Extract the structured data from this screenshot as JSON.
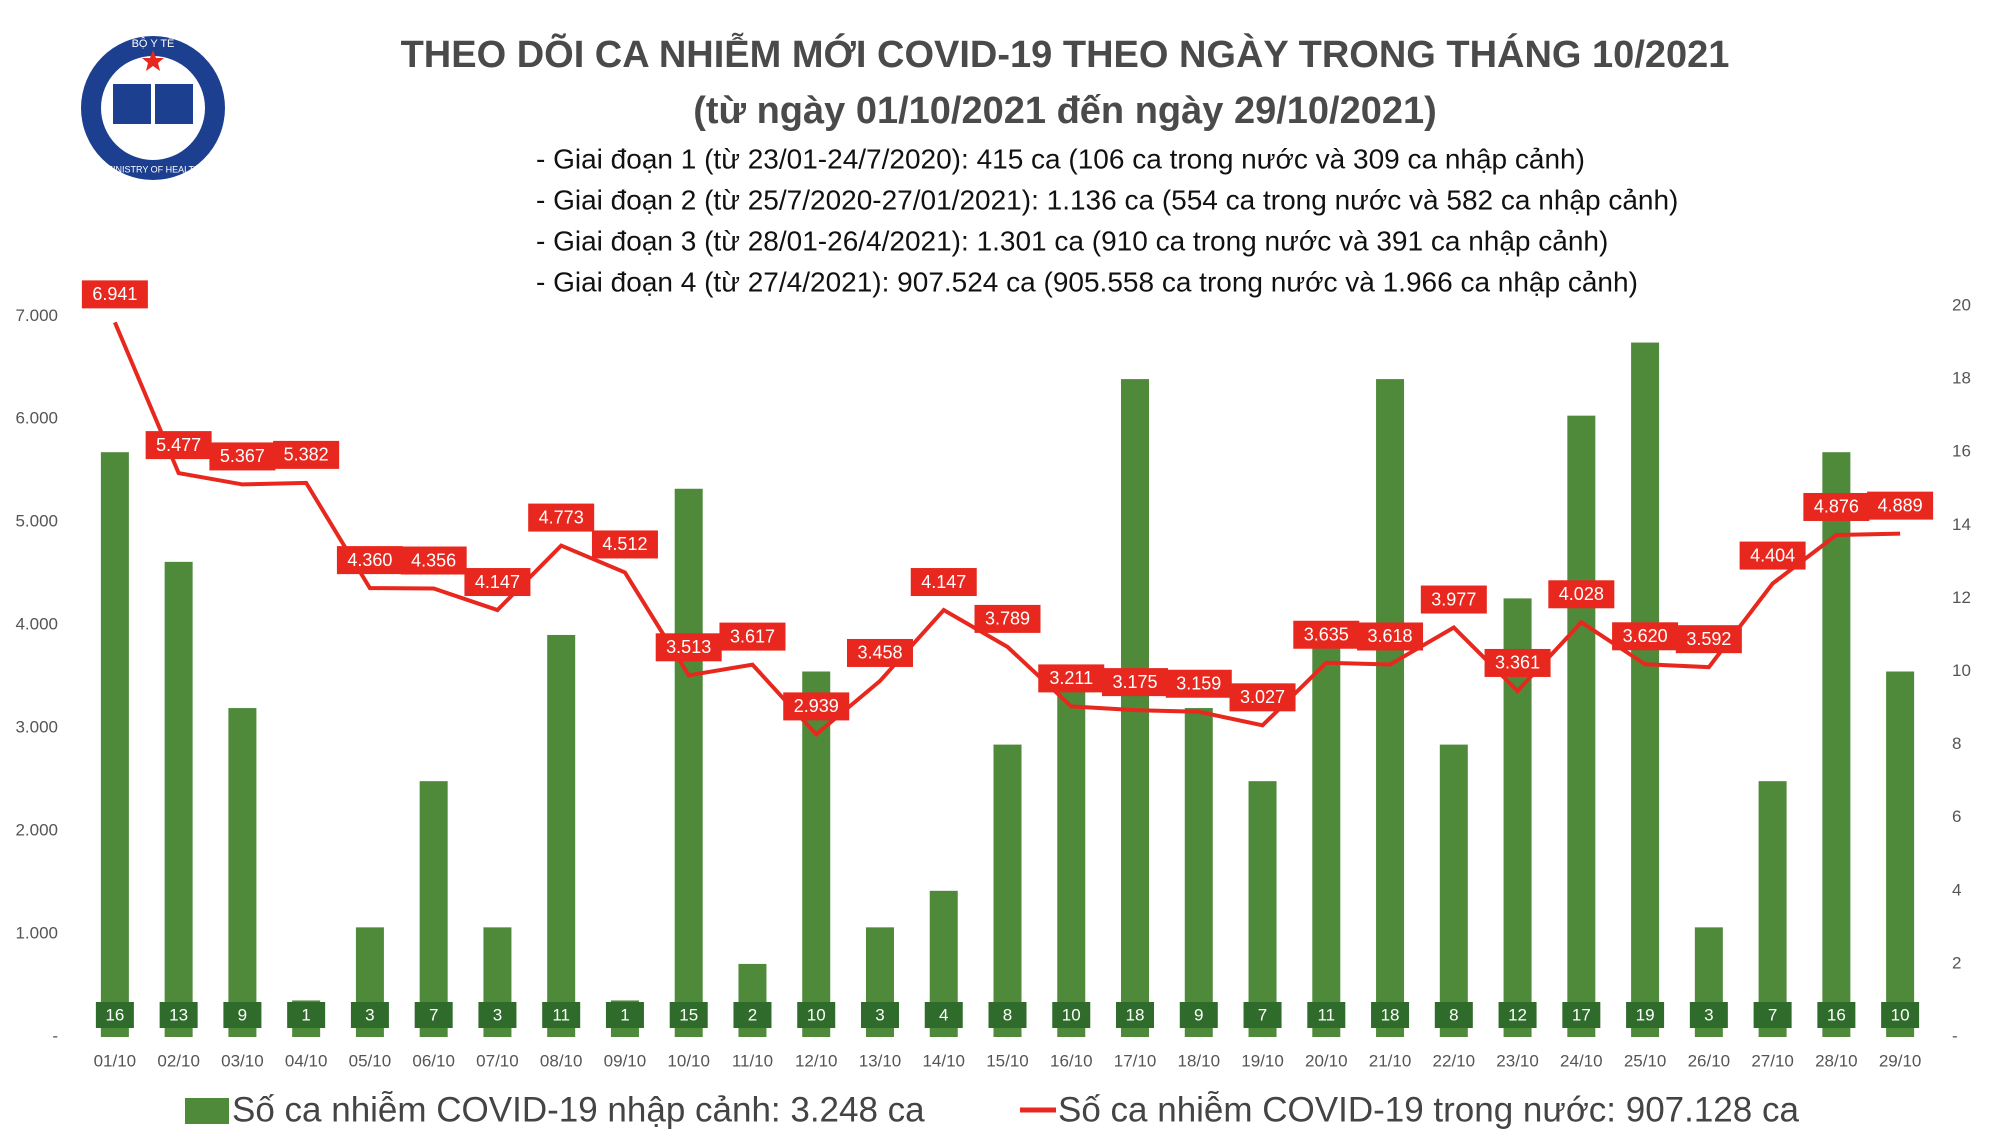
{
  "logo": {
    "top": "BỘ Y TẾ",
    "bottom": "MINISTRY OF HEALTH"
  },
  "chart_data": {
    "type": "combo",
    "title": "THEO DÕI CA NHIỄM MỚI COVID-19 THEO NGÀY TRONG THÁNG 10/2021",
    "subtitle": "(từ ngày 01/10/2021 đến ngày 29/10/2021)",
    "notes": [
      "- Giai đoạn 1 (từ 23/01-24/7/2020): 415 ca (106 ca trong nước và 309 ca nhập cảnh)",
      "- Giai đoạn 2 (từ 25/7/2020-27/01/2021): 1.136 ca (554 ca trong nước và 582 ca nhập cảnh)",
      "- Giai đoạn 3 (từ 28/01-26/4/2021): 1.301 ca (910 ca trong nước và 391 ca nhập cảnh)",
      "- Giai đoạn 4 (từ 27/4/2021): 907.524 ca (905.558 ca trong nước và 1.966 ca nhập cảnh)"
    ],
    "categories": [
      "01/10",
      "02/10",
      "03/10",
      "04/10",
      "05/10",
      "06/10",
      "07/10",
      "08/10",
      "09/10",
      "10/10",
      "11/10",
      "12/10",
      "13/10",
      "14/10",
      "15/10",
      "16/10",
      "17/10",
      "18/10",
      "19/10",
      "20/10",
      "21/10",
      "22/10",
      "23/10",
      "24/10",
      "25/10",
      "26/10",
      "27/10",
      "28/10",
      "29/10"
    ],
    "series": [
      {
        "name": "Số ca nhiễm COVID-19 nhập cảnh: 3.248 ca",
        "type": "bar",
        "axis": "y2",
        "color": "#4e8a3a",
        "values": [
          16,
          13,
          9,
          1,
          3,
          7,
          3,
          11,
          1,
          15,
          2,
          10,
          3,
          4,
          8,
          10,
          18,
          9,
          7,
          11,
          18,
          8,
          12,
          17,
          19,
          3,
          7,
          16,
          10
        ]
      },
      {
        "name": "Số ca nhiễm COVID-19 trong nước: 907.128 ca",
        "type": "line",
        "color": "#e8281e",
        "values": [
          6941,
          5477,
          5367,
          5382,
          4360,
          4356,
          4147,
          4773,
          4512,
          3513,
          3617,
          2939,
          3458,
          4147,
          3789,
          3211,
          3175,
          3159,
          3027,
          3635,
          3618,
          3977,
          3361,
          4028,
          3620,
          3592,
          4404,
          4876,
          4889
        ],
        "value_labels": [
          "6.941",
          "5.477",
          "5.367",
          "5.382",
          "4.360",
          "4.356",
          "4.147",
          "4.773",
          "4.512",
          "3.513",
          "3.617",
          "2.939",
          "3.458",
          "4.147",
          "3.789",
          "3.211",
          "3.175",
          "3.159",
          "3.027",
          "3.635",
          "3.618",
          "3.977",
          "3.361",
          "4.028",
          "3.620",
          "3.592",
          "4.404",
          "4.876",
          "4.889"
        ]
      }
    ],
    "ylim": [
      0,
      7100
    ],
    "yticks": [
      {
        "value": 0,
        "label": "-"
      },
      {
        "value": 1000,
        "label": "1.000"
      },
      {
        "value": 2000,
        "label": "2.000"
      },
      {
        "value": 3000,
        "label": "3.000"
      },
      {
        "value": 4000,
        "label": "4.000"
      },
      {
        "value": 5000,
        "label": "5.000"
      },
      {
        "value": 6000,
        "label": "6.000"
      },
      {
        "value": 7000,
        "label": "7.000"
      }
    ],
    "y2lim": [
      0,
      20
    ],
    "y2ticks": [
      {
        "value": 0,
        "label": "-"
      },
      2,
      4,
      6,
      8,
      10,
      12,
      14,
      16,
      18,
      20
    ]
  }
}
